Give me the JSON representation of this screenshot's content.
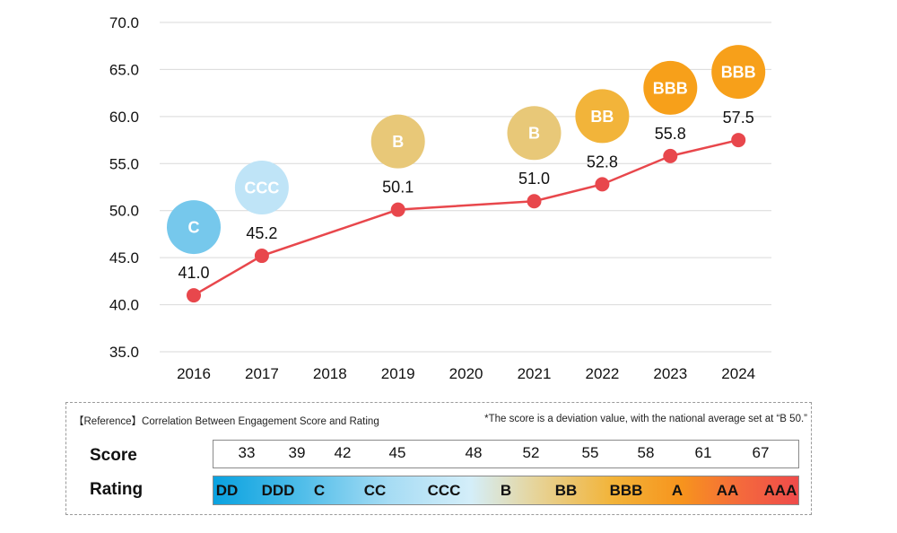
{
  "chart_data": {
    "type": "line",
    "categories": [
      "2016",
      "2017",
      "2018",
      "2019",
      "2020",
      "2021",
      "2022",
      "2023",
      "2024"
    ],
    "series": [
      {
        "points": [
          {
            "x": "2016",
            "y": 41.0,
            "label": "41.0",
            "rating": "C"
          },
          {
            "x": "2017",
            "y": 45.2,
            "label": "45.2",
            "rating": "CCC"
          },
          {
            "x": "2019",
            "y": 50.1,
            "label": "50.1",
            "rating": "B"
          },
          {
            "x": "2021",
            "y": 51.0,
            "label": "51.0",
            "rating": "B"
          },
          {
            "x": "2022",
            "y": 52.8,
            "label": "52.8",
            "rating": "BB"
          },
          {
            "x": "2023",
            "y": 55.8,
            "label": "55.8",
            "rating": "BBB"
          },
          {
            "x": "2024",
            "y": 57.5,
            "label": "57.5",
            "rating": "BBB"
          }
        ]
      }
    ],
    "yticks": [
      "35.0",
      "40.0",
      "45.0",
      "50.0",
      "55.0",
      "60.0",
      "65.0",
      "70.0"
    ],
    "ylim": [
      35,
      70
    ],
    "grid": "horizontal",
    "line_color": "#e8474c",
    "rating_colors": {
      "C": "#76c8ec",
      "CCC": "#bfe4f7",
      "B": "#e8c878",
      "BB": "#f2b43a",
      "BBB": "#f7a01a"
    }
  },
  "reference": {
    "title": "【Reference】Correlation Between Engagement Score and Rating",
    "note": "*The score is a deviation value, with the national average set at “B 50.”",
    "score_label": "Score",
    "rating_label": "Rating",
    "scores": [
      "33",
      "39",
      "42",
      "45",
      "48",
      "52",
      "55",
      "58",
      "61",
      "67"
    ],
    "ratings": [
      "DD",
      "DDD",
      "C",
      "CC",
      "CCC",
      "B",
      "BB",
      "BBB",
      "A",
      "AA",
      "AAA"
    ]
  }
}
